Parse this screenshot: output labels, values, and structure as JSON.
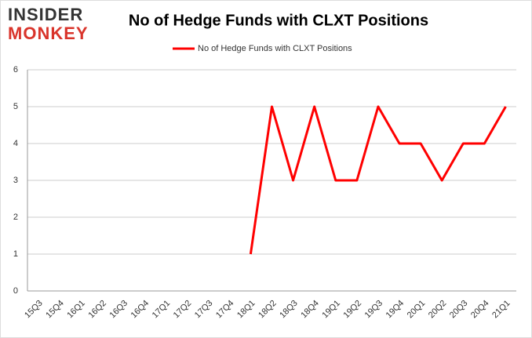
{
  "logo": [
    "INSIDER",
    "MONKEY"
  ],
  "chart_data": {
    "type": "line",
    "title": "No of Hedge Funds with CLXT Positions",
    "categories": [
      "15Q3",
      "15Q4",
      "16Q1",
      "16Q2",
      "16Q3",
      "16Q4",
      "17Q1",
      "17Q2",
      "17Q3",
      "17Q4",
      "18Q1",
      "18Q2",
      "18Q3",
      "18Q4",
      "19Q1",
      "19Q2",
      "19Q3",
      "19Q4",
      "20Q1",
      "20Q2",
      "20Q3",
      "20Q4",
      "21Q1"
    ],
    "series": [
      {
        "name": "No of Hedge Funds with CLXT Positions",
        "color": "#ff0000",
        "values": [
          null,
          null,
          null,
          null,
          null,
          null,
          null,
          null,
          null,
          null,
          1,
          5,
          3,
          5,
          3,
          3,
          5,
          4,
          4,
          3,
          4,
          4,
          5
        ]
      }
    ],
    "ylim": [
      0,
      6
    ],
    "yticks": [
      0,
      1,
      2,
      3,
      4,
      5,
      6
    ],
    "grid": true,
    "legend": "top"
  }
}
